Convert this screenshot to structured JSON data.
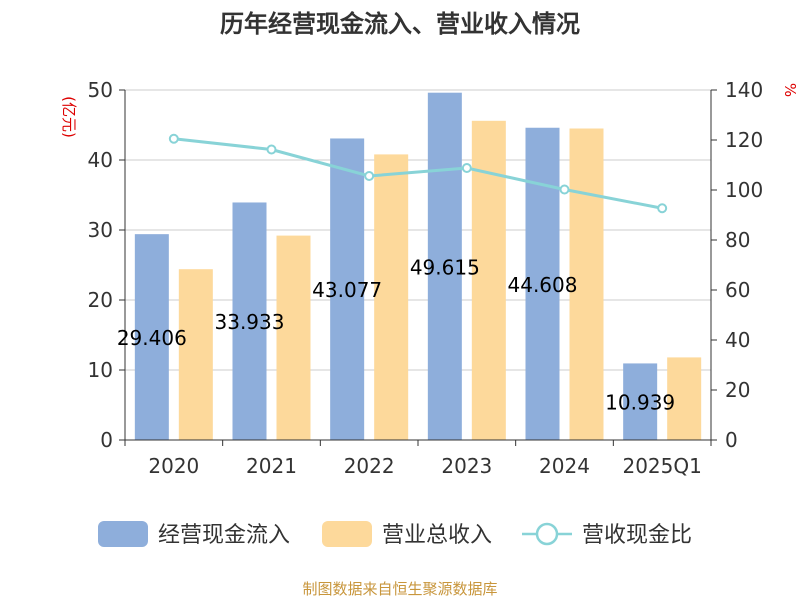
{
  "chart_data": {
    "type": "bar",
    "title": "历年经营现金流入、营业收入情况",
    "categories": [
      "2020",
      "2021",
      "2022",
      "2023",
      "2024",
      "2025Q1"
    ],
    "y_left": {
      "unit": "(亿元)",
      "range": [
        0,
        50
      ],
      "ticks": [
        0,
        10,
        20,
        30,
        40,
        50
      ]
    },
    "y_right": {
      "unit": "%",
      "range": [
        0,
        140
      ],
      "ticks": [
        0,
        20,
        40,
        60,
        80,
        100,
        120,
        140
      ]
    },
    "grid": true,
    "legend_position": "bottom",
    "series": [
      {
        "name": "经营现金流入",
        "kind": "bar",
        "axis": "left",
        "color": "#8eaedb",
        "values": [
          29.406,
          33.933,
          43.077,
          49.615,
          44.608,
          10.939
        ],
        "labels": [
          "29.406",
          "33.933",
          "43.077",
          "49.615",
          "44.608",
          "10.939"
        ]
      },
      {
        "name": "营业总收入",
        "kind": "bar",
        "axis": "left",
        "color": "#fdd99b",
        "values": [
          24.4,
          29.2,
          40.8,
          45.6,
          44.5,
          11.8
        ]
      },
      {
        "name": "营收现金比",
        "kind": "line",
        "axis": "right",
        "color": "#88d3d7",
        "values": [
          120.5,
          116.2,
          105.6,
          108.8,
          100.2,
          92.7
        ]
      }
    ],
    "source": "制图数据来自恒生聚源数据库"
  }
}
